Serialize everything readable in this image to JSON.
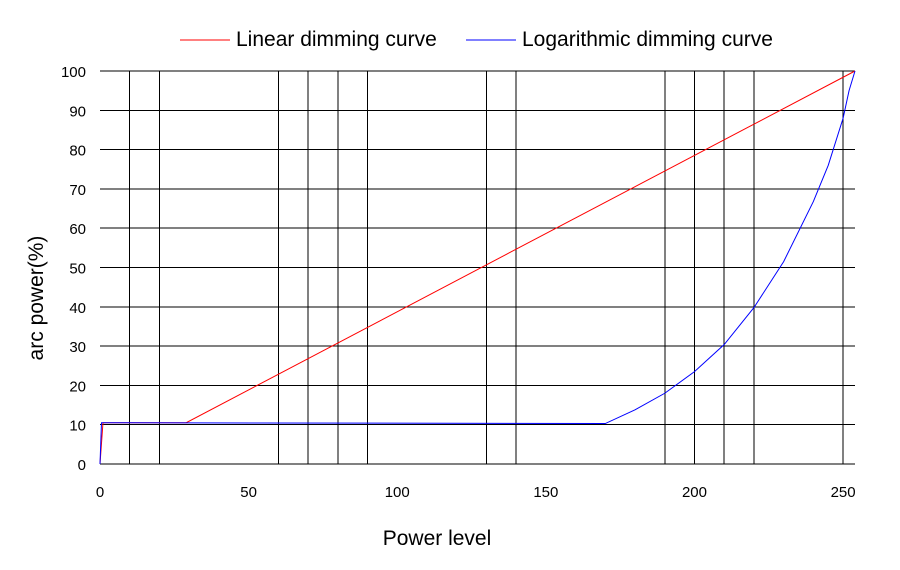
{
  "chart_data": {
    "type": "line",
    "xlabel": "Power level",
    "ylabel": "arc power(%)",
    "xlim": [
      0,
      254
    ],
    "ylim": [
      0,
      100
    ],
    "x_ticks": [
      0,
      50,
      100,
      150,
      200,
      250
    ],
    "y_ticks": [
      0,
      10,
      20,
      30,
      40,
      50,
      60,
      70,
      80,
      90,
      100
    ],
    "vertical_gridlines_at": [
      10,
      20,
      60,
      70,
      80,
      90,
      130,
      140,
      190,
      200,
      210,
      220,
      250
    ],
    "horizontal_grid": true,
    "legend_position": "top",
    "series": [
      {
        "name": "Linear dimming curve",
        "color": "#ff0000",
        "x": [
          0,
          1,
          29,
          254
        ],
        "y": [
          0,
          10.5,
          10.5,
          100
        ]
      },
      {
        "name": "Logarithmic dimming curve",
        "color": "#0000ff",
        "x": [
          0,
          0.5,
          170,
          180,
          190,
          200,
          210,
          220,
          230,
          240,
          245,
          250,
          252,
          254
        ],
        "y": [
          0,
          10.5,
          10.3,
          13.8,
          18.0,
          23.5,
          30.4,
          39.8,
          51.5,
          66.8,
          76.0,
          88.0,
          95.0,
          100
        ]
      }
    ]
  }
}
